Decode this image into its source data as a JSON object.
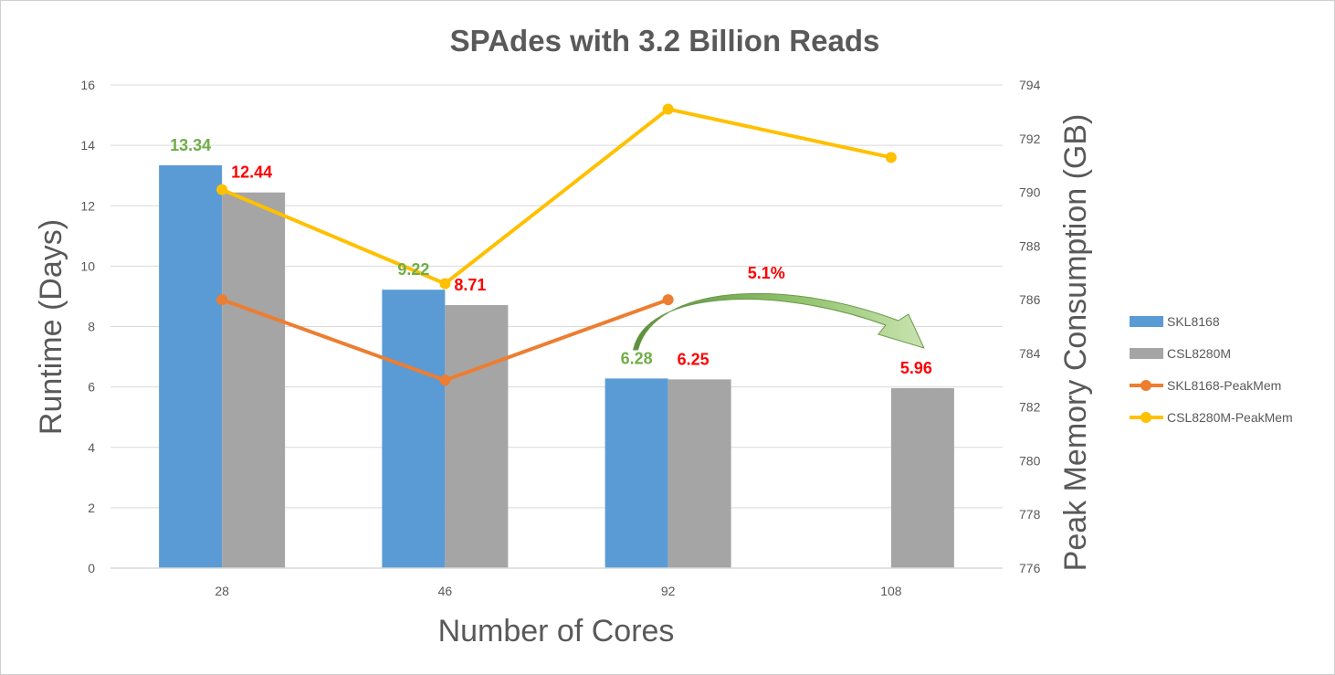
{
  "chart_data": {
    "type": "bar",
    "title": "SPAdes with 3.2 Billion Reads",
    "xlabel": "Number of Cores",
    "ylabel": "Runtime (Days)",
    "y2label": "Peak Memory Consumption (GB)",
    "categories": [
      "28",
      "46",
      "92",
      "108"
    ],
    "ylim": [
      0,
      16
    ],
    "yticks": [
      0,
      2,
      4,
      6,
      8,
      10,
      12,
      14,
      16
    ],
    "y2lim": [
      776,
      794
    ],
    "y2ticks": [
      776,
      778,
      780,
      782,
      784,
      786,
      788,
      790,
      792,
      794
    ],
    "grid": true,
    "legend_position": "right",
    "series": [
      {
        "name": "SKL8168",
        "kind": "bar",
        "axis": "left",
        "color": "#5b9bd5",
        "values": [
          13.34,
          9.22,
          6.28,
          null
        ]
      },
      {
        "name": "CSL8280M",
        "kind": "bar",
        "axis": "left",
        "color": "#a5a5a5",
        "values": [
          12.44,
          8.71,
          6.25,
          5.96
        ]
      },
      {
        "name": "SKL8168-PeakMem",
        "kind": "line",
        "axis": "right",
        "color": "#ed7d31",
        "values": [
          786.0,
          783.0,
          786.0,
          null
        ]
      },
      {
        "name": "CSL8280M-PeakMem",
        "kind": "line",
        "axis": "right",
        "color": "#ffc000",
        "values": [
          790.1,
          786.6,
          793.1,
          791.3
        ]
      }
    ],
    "data_labels": [
      {
        "series": "SKL8168",
        "category": "28",
        "text": "13.34",
        "color": "#70ad47"
      },
      {
        "series": "CSL8280M",
        "category": "28",
        "text": "12.44",
        "color": "#ff0000"
      },
      {
        "series": "SKL8168",
        "category": "46",
        "text": "9.22",
        "color": "#70ad47"
      },
      {
        "series": "CSL8280M",
        "category": "46",
        "text": "8.71",
        "color": "#ff0000"
      },
      {
        "series": "SKL8168",
        "category": "92",
        "text": "6.28",
        "color": "#70ad47"
      },
      {
        "series": "CSL8280M",
        "category": "92",
        "text": "6.25",
        "color": "#ff0000"
      },
      {
        "series": "CSL8280M",
        "category": "108",
        "text": "5.96",
        "color": "#ff0000"
      }
    ],
    "annotation": {
      "text": "5.1%",
      "color": "#ff0000",
      "arrow_from": "92",
      "arrow_to": "108",
      "arrow_color": "#70ad47"
    }
  }
}
